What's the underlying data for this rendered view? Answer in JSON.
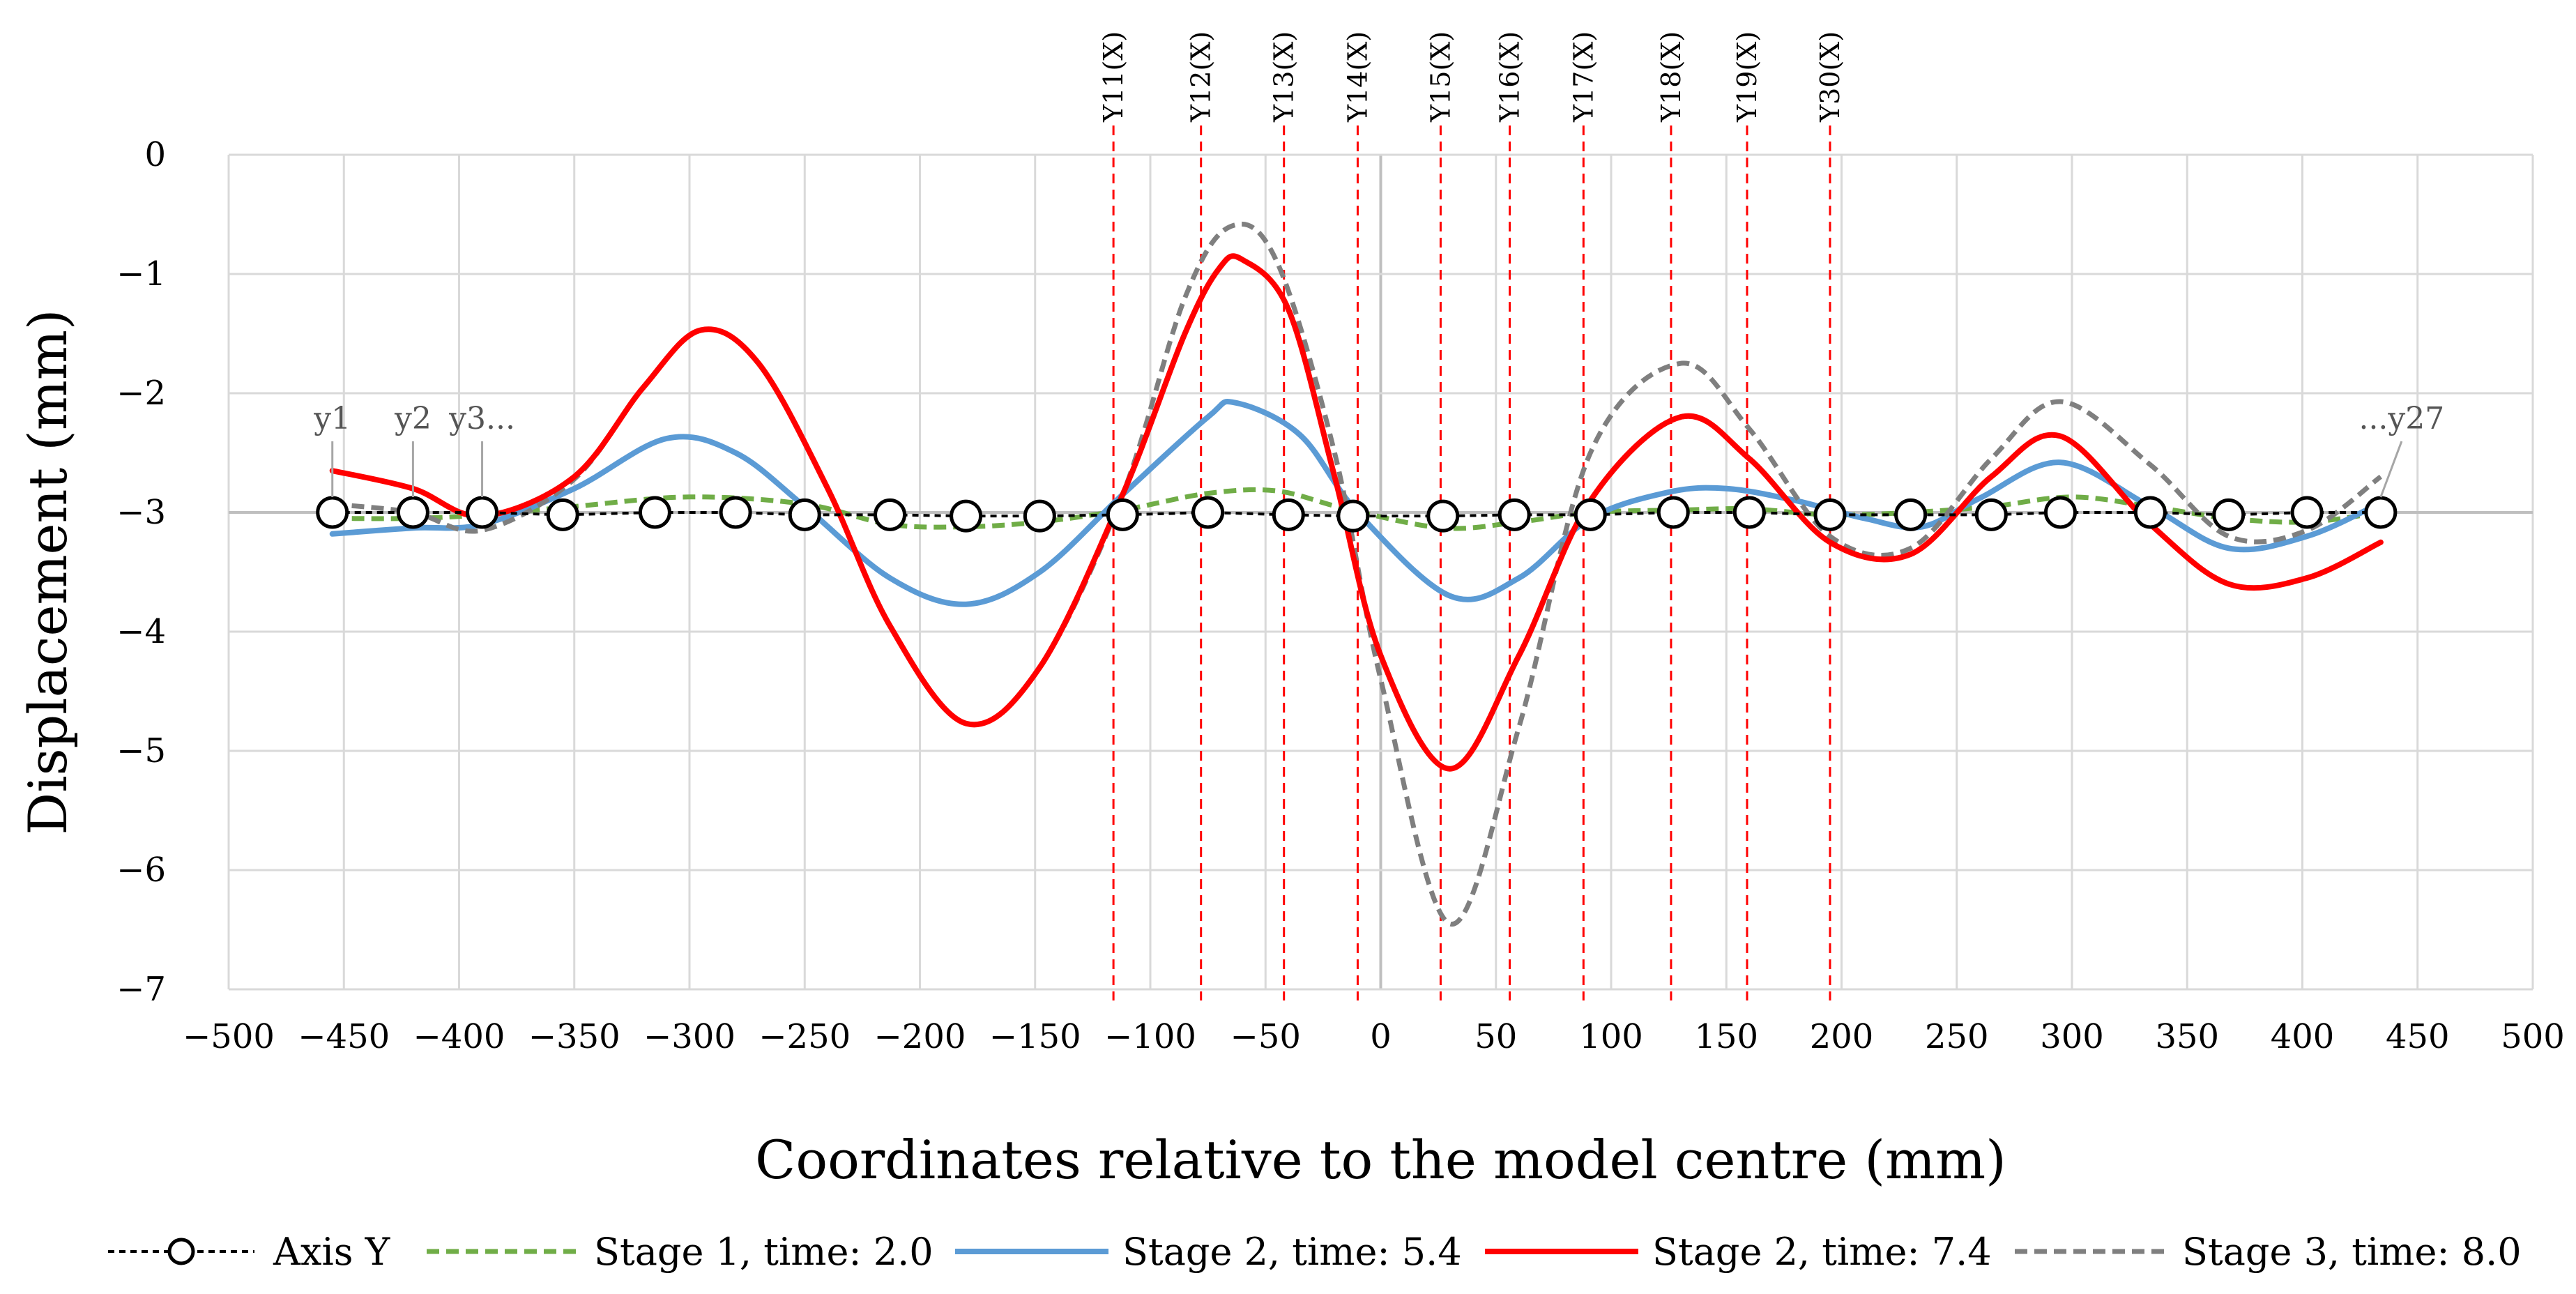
{
  "chart_data": {
    "type": "line",
    "title": "",
    "xlabel": "Coordinates relative to the model centre (mm)",
    "ylabel": "Displacement  (mm)",
    "xlim": [
      -500,
      500
    ],
    "ylim": [
      -7,
      0
    ],
    "x_ticks": [
      -500,
      -450,
      -400,
      -350,
      -300,
      -250,
      -200,
      -150,
      -100,
      -50,
      0,
      50,
      100,
      150,
      200,
      250,
      300,
      350,
      400,
      450,
      500
    ],
    "x_tick_labels": [
      "−500",
      "−450",
      "−400",
      "−350",
      "−300",
      "−250",
      "−200",
      "−150",
      "−100",
      "−50",
      "0",
      "50",
      "100",
      "150",
      "200",
      "250",
      "300",
      "350",
      "400",
      "450",
      "500"
    ],
    "y_ticks": [
      0,
      -1,
      -2,
      -3,
      -4,
      -5,
      -6,
      -7
    ],
    "y_tick_labels": [
      "0",
      "−1",
      "−2",
      "−3",
      "−4",
      "−5",
      "−6",
      "−7"
    ],
    "grid": true,
    "legend_position": "bottom",
    "series": [
      {
        "name": "Axis Y",
        "style": "dashed-circle",
        "color": "#000000",
        "x": [
          -455,
          -420,
          -390,
          -355,
          -315,
          -280,
          -250,
          -213,
          -180,
          -148,
          -112,
          -75,
          -40,
          -12,
          27,
          58,
          91,
          127,
          160,
          195,
          230,
          265,
          295,
          334,
          368,
          402,
          434
        ],
        "y": [
          -3.0,
          -3.0,
          -3.0,
          -3.02,
          -3.0,
          -3.0,
          -3.02,
          -3.02,
          -3.03,
          -3.03,
          -3.02,
          -3.0,
          -3.02,
          -3.03,
          -3.03,
          -3.02,
          -3.02,
          -3.0,
          -3.0,
          -3.02,
          -3.02,
          -3.02,
          -3.0,
          -3.0,
          -3.02,
          -3.0,
          -3.0
        ]
      },
      {
        "name": "Stage 1, time: 2.0",
        "style": "dashed",
        "color": "#70AD47",
        "x": [
          -455,
          -420,
          -390,
          -350,
          -300,
          -250,
          -213,
          -180,
          -148,
          -112,
          -75,
          -45,
          -15,
          27,
          60,
          91,
          130,
          160,
          195,
          230,
          265,
          300,
          334,
          368,
          402,
          434
        ],
        "y": [
          -3.05,
          -3.05,
          -3.02,
          -2.95,
          -2.87,
          -2.93,
          -3.1,
          -3.12,
          -3.08,
          -2.98,
          -2.84,
          -2.82,
          -2.97,
          -3.13,
          -3.08,
          -3.0,
          -2.98,
          -2.97,
          -3.02,
          -3.0,
          -2.95,
          -2.87,
          -2.95,
          -3.05,
          -3.08,
          -3.0
        ]
      },
      {
        "name": "Stage 2, time: 5.4",
        "style": "solid",
        "color": "#5B9BD5",
        "x": [
          -455,
          -420,
          -390,
          -350,
          -310,
          -280,
          -250,
          -213,
          -180,
          -148,
          -112,
          -75,
          -63,
          -35,
          -10,
          30,
          60,
          91,
          125,
          150,
          180,
          210,
          235,
          260,
          295,
          334,
          368,
          402,
          434
        ],
        "y": [
          -3.18,
          -3.13,
          -3.1,
          -2.8,
          -2.38,
          -2.5,
          -2.95,
          -3.55,
          -3.77,
          -3.5,
          -2.85,
          -2.2,
          -2.08,
          -2.35,
          -3.0,
          -3.7,
          -3.55,
          -3.05,
          -2.83,
          -2.8,
          -2.9,
          -3.05,
          -3.12,
          -2.88,
          -2.58,
          -2.95,
          -3.3,
          -3.2,
          -2.92
        ]
      },
      {
        "name": "Stage 2, time: 7.4",
        "style": "solid",
        "color": "#FF0000",
        "x": [
          -455,
          -420,
          -390,
          -350,
          -320,
          -295,
          -270,
          -240,
          -213,
          -180,
          -148,
          -112,
          -85,
          -70,
          -60,
          -40,
          -20,
          0,
          30,
          60,
          91,
          130,
          160,
          195,
          230,
          265,
          295,
          334,
          368,
          402,
          434
        ],
        "y": [
          -2.65,
          -2.8,
          -3.03,
          -2.7,
          -1.95,
          -1.47,
          -1.75,
          -2.8,
          -3.95,
          -4.77,
          -4.3,
          -2.85,
          -1.5,
          -0.95,
          -0.88,
          -1.3,
          -2.7,
          -4.2,
          -5.15,
          -4.2,
          -2.9,
          -2.2,
          -2.55,
          -3.25,
          -3.35,
          -2.7,
          -2.36,
          -3.1,
          -3.6,
          -3.55,
          -3.25
        ]
      },
      {
        "name": "Stage 3, time: 8.0",
        "style": "dashed",
        "color": "#7F7F7F",
        "x": [
          -455,
          -420,
          -390,
          -350,
          -320,
          -295,
          -270,
          -240,
          -213,
          -180,
          -148,
          -112,
          -85,
          -65,
          -45,
          -20,
          0,
          30,
          60,
          91,
          130,
          160,
          195,
          230,
          265,
          295,
          334,
          368,
          402,
          434
        ],
        "y": [
          -2.93,
          -3.0,
          -3.15,
          -2.72,
          -1.95,
          -1.47,
          -1.75,
          -2.8,
          -3.95,
          -4.77,
          -4.3,
          -2.85,
          -1.2,
          -0.6,
          -0.9,
          -2.5,
          -4.4,
          -6.45,
          -4.8,
          -2.5,
          -1.75,
          -2.3,
          -3.2,
          -3.3,
          -2.55,
          -2.07,
          -2.6,
          -3.2,
          -3.15,
          -2.7
        ]
      }
    ],
    "vertical_markers": [
      {
        "label": "Y11(X)",
        "x": -116
      },
      {
        "label": "Y12(X)",
        "x": -78
      },
      {
        "label": "Y13(X)",
        "x": -42
      },
      {
        "label": "Y14(X)",
        "x": -10
      },
      {
        "label": "Y15(X)",
        "x": 26
      },
      {
        "label": "Y16(X)",
        "x": 56
      },
      {
        "label": "Y17(X)",
        "x": 88
      },
      {
        "label": "Y18(X)",
        "x": 126
      },
      {
        "label": "Y19(X)",
        "x": 159
      },
      {
        "label": "Y30(X)",
        "x": 195
      }
    ],
    "point_annotations": [
      {
        "label": "y1",
        "x": -455
      },
      {
        "label": "y2",
        "x": -420
      },
      {
        "label": "y3...",
        "x": -390
      },
      {
        "label": "...y27",
        "x": 434
      }
    ]
  }
}
